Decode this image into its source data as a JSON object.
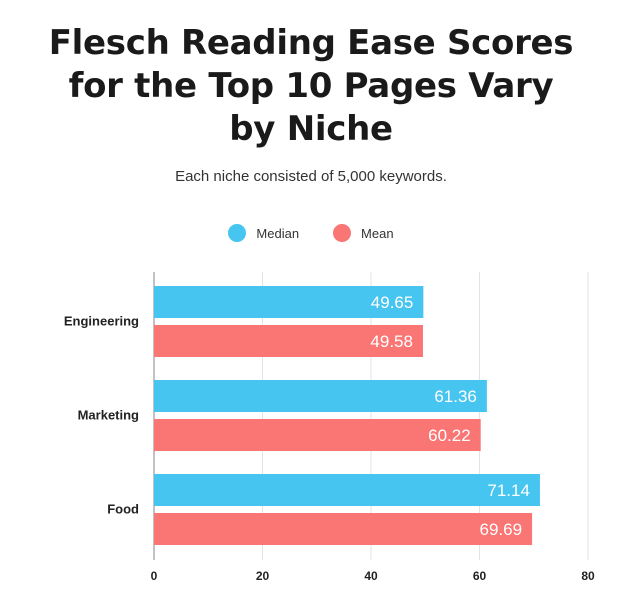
{
  "chart_data": {
    "type": "bar",
    "orientation": "horizontal",
    "title": "Flesch Reading Ease Scores for the Top 10 Pages Vary by Niche",
    "subtitle": "Each niche consisted of 5,000 keywords.",
    "categories": [
      "Engineering",
      "Marketing",
      "Food"
    ],
    "series": [
      {
        "name": "Median",
        "color": "#45c5f0",
        "values": [
          49.65,
          61.36,
          71.14
        ]
      },
      {
        "name": "Mean",
        "color": "#f97674",
        "values": [
          49.58,
          60.22,
          69.69
        ]
      }
    ],
    "xlim": [
      0,
      80
    ],
    "xticks": [
      "0",
      "20",
      "40",
      "60",
      "80"
    ],
    "grid": true,
    "legend_position": "top-center"
  }
}
